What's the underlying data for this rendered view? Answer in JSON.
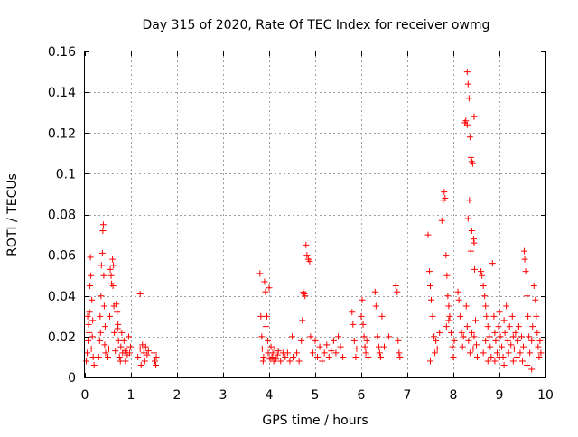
{
  "chart_data": {
    "type": "scatter",
    "title": "Day 315 of 2020, Rate Of TEC Index for receiver owmg",
    "xlabel": "GPS time / hours",
    "ylabel": "ROTI / TECUs",
    "xlim": [
      0,
      10
    ],
    "ylim": [
      0,
      0.16
    ],
    "x_ticks": [
      0,
      1,
      2,
      3,
      4,
      5,
      6,
      7,
      8,
      9,
      10
    ],
    "x_tick_labels": [
      "0",
      "1",
      "2",
      "3",
      "4",
      "5",
      "6",
      "7",
      "8",
      "9",
      "10"
    ],
    "y_ticks": [
      0,
      0.02,
      0.04,
      0.06,
      0.08,
      0.1,
      0.12,
      0.14,
      0.16
    ],
    "y_tick_labels": [
      "0",
      "0.02",
      "0.04",
      "0.06",
      "0.08",
      "0.1",
      "0.12",
      "0.14",
      "0.16"
    ],
    "grid": true,
    "marker": "+",
    "color": "#ff0000",
    "series": [
      {
        "name": "ROTI",
        "points": [
          [
            0.03,
            0.008
          ],
          [
            0.05,
            0.012
          ],
          [
            0.07,
            0.018
          ],
          [
            0.08,
            0.026
          ],
          [
            0.1,
            0.032
          ],
          [
            0.11,
            0.045
          ],
          [
            0.12,
            0.059
          ],
          [
            0.13,
            0.05
          ],
          [
            0.15,
            0.038
          ],
          [
            0.16,
            0.02
          ],
          [
            0.18,
            0.01
          ],
          [
            0.2,
            0.006
          ],
          [
            0.06,
            0.03
          ],
          [
            0.09,
            0.022
          ],
          [
            0.14,
            0.014
          ],
          [
            0.17,
            0.028
          ],
          [
            0.3,
            0.01
          ],
          [
            0.32,
            0.018
          ],
          [
            0.33,
            0.03
          ],
          [
            0.35,
            0.04
          ],
          [
            0.36,
            0.055
          ],
          [
            0.38,
            0.061
          ],
          [
            0.39,
            0.072
          ],
          [
            0.4,
            0.075
          ],
          [
            0.41,
            0.05
          ],
          [
            0.42,
            0.035
          ],
          [
            0.44,
            0.025
          ],
          [
            0.45,
            0.012
          ],
          [
            0.34,
            0.022
          ],
          [
            0.43,
            0.016
          ],
          [
            0.5,
            0.01
          ],
          [
            0.52,
            0.014
          ],
          [
            0.55,
            0.053
          ],
          [
            0.57,
            0.05
          ],
          [
            0.58,
            0.046
          ],
          [
            0.6,
            0.058
          ],
          [
            0.62,
            0.055
          ],
          [
            0.63,
            0.035
          ],
          [
            0.64,
            0.022
          ],
          [
            0.66,
            0.013
          ],
          [
            0.68,
            0.036
          ],
          [
            0.7,
            0.032
          ],
          [
            0.72,
            0.026
          ],
          [
            0.73,
            0.018
          ],
          [
            0.75,
            0.01
          ],
          [
            0.77,
            0.008
          ],
          [
            0.78,
            0.015
          ],
          [
            0.8,
            0.022
          ],
          [
            0.82,
            0.012
          ],
          [
            0.85,
            0.018
          ],
          [
            0.88,
            0.008
          ],
          [
            0.9,
            0.014
          ],
          [
            0.92,
            0.011
          ],
          [
            0.95,
            0.02
          ],
          [
            0.97,
            0.012
          ],
          [
            0.99,
            0.015
          ],
          [
            0.54,
            0.03
          ],
          [
            0.61,
            0.045
          ],
          [
            0.71,
            0.024
          ],
          [
            0.87,
            0.013
          ],
          [
            1.2,
            0.041
          ],
          [
            1.15,
            0.01
          ],
          [
            1.2,
            0.014
          ],
          [
            1.22,
            0.006
          ],
          [
            1.25,
            0.016
          ],
          [
            1.28,
            0.012
          ],
          [
            1.3,
            0.008
          ],
          [
            1.32,
            0.015
          ],
          [
            1.35,
            0.011
          ],
          [
            1.38,
            0.013
          ],
          [
            1.5,
            0.012
          ],
          [
            1.52,
            0.008
          ],
          [
            1.54,
            0.006
          ],
          [
            1.55,
            0.01
          ],
          [
            3.8,
            0.051
          ],
          [
            3.82,
            0.03
          ],
          [
            3.84,
            0.02
          ],
          [
            3.85,
            0.014
          ],
          [
            3.87,
            0.008
          ],
          [
            3.88,
            0.01
          ],
          [
            3.9,
            0.047
          ],
          [
            3.92,
            0.042
          ],
          [
            3.93,
            0.025
          ],
          [
            3.95,
            0.03
          ],
          [
            3.97,
            0.018
          ],
          [
            3.98,
            0.012
          ],
          [
            4.0,
            0.044
          ],
          [
            4.02,
            0.009
          ],
          [
            4.04,
            0.015
          ],
          [
            4.06,
            0.01
          ],
          [
            4.08,
            0.012
          ],
          [
            4.1,
            0.008
          ],
          [
            4.12,
            0.014
          ],
          [
            4.15,
            0.009
          ],
          [
            4.18,
            0.011
          ],
          [
            4.2,
            0.013
          ],
          [
            4.25,
            0.008
          ],
          [
            4.3,
            0.012
          ],
          [
            4.35,
            0.01
          ],
          [
            4.4,
            0.012
          ],
          [
            4.45,
            0.008
          ],
          [
            4.5,
            0.02
          ],
          [
            4.52,
            0.01
          ],
          [
            4.6,
            0.012
          ],
          [
            4.65,
            0.008
          ],
          [
            4.7,
            0.018
          ],
          [
            4.72,
            0.028
          ],
          [
            4.74,
            0.042
          ],
          [
            4.76,
            0.041
          ],
          [
            4.78,
            0.04
          ],
          [
            4.8,
            0.065
          ],
          [
            4.82,
            0.06
          ],
          [
            4.85,
            0.058
          ],
          [
            4.88,
            0.057
          ],
          [
            4.9,
            0.02
          ],
          [
            4.95,
            0.012
          ],
          [
            5.0,
            0.018
          ],
          [
            5.05,
            0.01
          ],
          [
            5.1,
            0.015
          ],
          [
            5.15,
            0.008
          ],
          [
            5.2,
            0.012
          ],
          [
            5.25,
            0.016
          ],
          [
            5.3,
            0.01
          ],
          [
            5.35,
            0.013
          ],
          [
            5.4,
            0.018
          ],
          [
            5.45,
            0.012
          ],
          [
            5.5,
            0.02
          ],
          [
            5.55,
            0.015
          ],
          [
            5.6,
            0.01
          ],
          [
            5.8,
            0.032
          ],
          [
            5.82,
            0.026
          ],
          [
            5.85,
            0.018
          ],
          [
            5.88,
            0.01
          ],
          [
            5.9,
            0.014
          ],
          [
            6.0,
            0.03
          ],
          [
            6.02,
            0.038
          ],
          [
            6.04,
            0.026
          ],
          [
            6.06,
            0.02
          ],
          [
            6.08,
            0.015
          ],
          [
            6.1,
            0.012
          ],
          [
            6.12,
            0.018
          ],
          [
            6.15,
            0.01
          ],
          [
            6.3,
            0.042
          ],
          [
            6.32,
            0.035
          ],
          [
            6.35,
            0.02
          ],
          [
            6.38,
            0.015
          ],
          [
            6.4,
            0.012
          ],
          [
            6.42,
            0.01
          ],
          [
            6.45,
            0.03
          ],
          [
            6.5,
            0.015
          ],
          [
            6.6,
            0.02
          ],
          [
            6.75,
            0.045
          ],
          [
            6.78,
            0.042
          ],
          [
            6.8,
            0.018
          ],
          [
            6.82,
            0.012
          ],
          [
            6.84,
            0.01
          ],
          [
            7.45,
            0.07
          ],
          [
            7.48,
            0.052
          ],
          [
            7.5,
            0.045
          ],
          [
            7.52,
            0.038
          ],
          [
            7.55,
            0.03
          ],
          [
            7.58,
            0.02
          ],
          [
            7.6,
            0.012
          ],
          [
            7.62,
            0.018
          ],
          [
            7.5,
            0.008
          ],
          [
            7.65,
            0.014
          ],
          [
            7.7,
            0.022
          ],
          [
            7.75,
            0.077
          ],
          [
            7.78,
            0.087
          ],
          [
            7.8,
            0.091
          ],
          [
            7.82,
            0.088
          ],
          [
            7.84,
            0.06
          ],
          [
            7.86,
            0.05
          ],
          [
            7.88,
            0.04
          ],
          [
            7.9,
            0.035
          ],
          [
            7.92,
            0.03
          ],
          [
            7.95,
            0.022
          ],
          [
            7.98,
            0.015
          ],
          [
            8.0,
            0.01
          ],
          [
            8.02,
            0.018
          ],
          [
            7.85,
            0.025
          ],
          [
            7.9,
            0.028
          ],
          [
            8.1,
            0.042
          ],
          [
            8.12,
            0.038
          ],
          [
            8.15,
            0.03
          ],
          [
            8.18,
            0.022
          ],
          [
            8.2,
            0.015
          ],
          [
            8.22,
            0.02
          ],
          [
            8.25,
            0.125
          ],
          [
            8.27,
            0.126
          ],
          [
            8.3,
            0.15
          ],
          [
            8.32,
            0.144
          ],
          [
            8.34,
            0.137
          ],
          [
            8.36,
            0.118
          ],
          [
            8.38,
            0.108
          ],
          [
            8.4,
            0.106
          ],
          [
            8.42,
            0.105
          ],
          [
            8.44,
            0.068
          ],
          [
            8.45,
            0.066
          ],
          [
            8.3,
            0.124
          ],
          [
            8.35,
            0.087
          ],
          [
            8.32,
            0.078
          ],
          [
            8.4,
            0.072
          ],
          [
            8.45,
            0.128
          ],
          [
            8.28,
            0.035
          ],
          [
            8.3,
            0.025
          ],
          [
            8.33,
            0.018
          ],
          [
            8.36,
            0.012
          ],
          [
            8.4,
            0.022
          ],
          [
            8.43,
            0.014
          ],
          [
            8.45,
            0.02
          ],
          [
            8.48,
            0.028
          ],
          [
            8.5,
            0.016
          ],
          [
            8.52,
            0.01
          ],
          [
            8.46,
            0.053
          ],
          [
            8.38,
            0.062
          ],
          [
            8.6,
            0.052
          ],
          [
            8.62,
            0.05
          ],
          [
            8.65,
            0.045
          ],
          [
            8.68,
            0.04
          ],
          [
            8.7,
            0.035
          ],
          [
            8.72,
            0.03
          ],
          [
            8.75,
            0.025
          ],
          [
            8.78,
            0.02
          ],
          [
            8.8,
            0.015
          ],
          [
            8.82,
            0.01
          ],
          [
            8.65,
            0.012
          ],
          [
            8.7,
            0.018
          ],
          [
            8.75,
            0.008
          ],
          [
            8.85,
            0.056
          ],
          [
            8.88,
            0.03
          ],
          [
            8.9,
            0.022
          ],
          [
            8.92,
            0.018
          ],
          [
            8.95,
            0.012
          ],
          [
            8.98,
            0.025
          ],
          [
            9.0,
            0.032
          ],
          [
            9.02,
            0.02
          ],
          [
            9.05,
            0.015
          ],
          [
            9.08,
            0.01
          ],
          [
            9.1,
            0.028
          ],
          [
            9.12,
            0.022
          ],
          [
            9.15,
            0.035
          ],
          [
            9.18,
            0.018
          ],
          [
            9.2,
            0.012
          ],
          [
            9.22,
            0.025
          ],
          [
            9.25,
            0.016
          ],
          [
            9.28,
            0.03
          ],
          [
            9.3,
            0.02
          ],
          [
            9.32,
            0.014
          ],
          [
            9.35,
            0.022
          ],
          [
            9.38,
            0.01
          ],
          [
            9.4,
            0.018
          ],
          [
            9.42,
            0.025
          ],
          [
            9.45,
            0.012
          ],
          [
            9.48,
            0.02
          ],
          [
            9.5,
            0.008
          ],
          [
            9.52,
            0.015
          ],
          [
            9.54,
            0.062
          ],
          [
            9.55,
            0.058
          ],
          [
            9.57,
            0.052
          ],
          [
            9.6,
            0.04
          ],
          [
            9.62,
            0.03
          ],
          [
            9.64,
            0.02
          ],
          [
            9.66,
            0.012
          ],
          [
            9.7,
            0.018
          ],
          [
            9.72,
            0.025
          ],
          [
            9.75,
            0.045
          ],
          [
            9.78,
            0.038
          ],
          [
            9.8,
            0.03
          ],
          [
            9.82,
            0.022
          ],
          [
            9.84,
            0.015
          ],
          [
            9.86,
            0.01
          ],
          [
            9.88,
            0.018
          ],
          [
            9.9,
            0.012
          ],
          [
            8.9,
            0.008
          ],
          [
            9.0,
            0.01
          ],
          [
            9.1,
            0.006
          ],
          [
            9.3,
            0.008
          ],
          [
            9.6,
            0.006
          ],
          [
            9.7,
            0.004
          ]
        ]
      }
    ]
  }
}
